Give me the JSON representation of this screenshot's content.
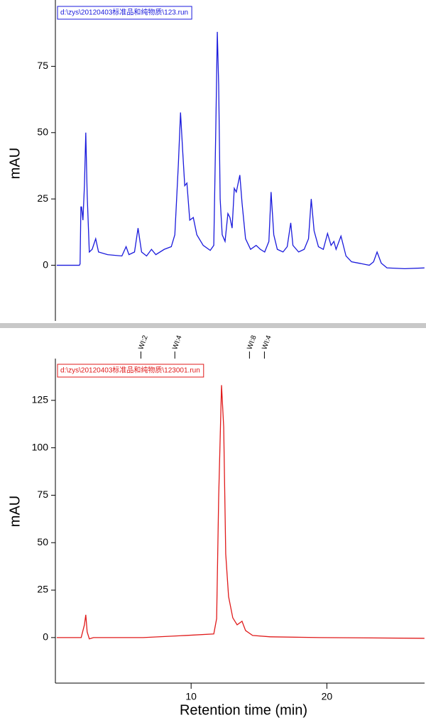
{
  "chart_data": [
    {
      "type": "line",
      "y_label": "mAU",
      "xlim": [
        0,
        27.2
      ],
      "ylim": [
        -21,
        100
      ],
      "yticks": [
        0,
        25,
        50,
        75
      ],
      "x": [
        0.1,
        0.21,
        1.77,
        1.82,
        1.88,
        1.93,
        2.03,
        2.14,
        2.24,
        2.34,
        2.5,
        2.71,
        2.97,
        3.18,
        3.85,
        4.9,
        5.21,
        5.42,
        5.83,
        6.09,
        6.35,
        6.72,
        7.08,
        7.4,
        8.02,
        8.54,
        8.8,
        9.06,
        9.22,
        9.38,
        9.53,
        9.69,
        9.9,
        10.16,
        10.42,
        10.89,
        11.41,
        11.67,
        11.82,
        11.93,
        12.03,
        12.14,
        12.29,
        12.5,
        12.71,
        12.86,
        13.02,
        13.18,
        13.33,
        13.59,
        13.75,
        14.01,
        14.38,
        14.79,
        15.1,
        15.42,
        15.73,
        15.89,
        16.09,
        16.35,
        16.77,
        17.08,
        17.34,
        17.5,
        17.92,
        18.33,
        18.65,
        18.85,
        19.06,
        19.38,
        19.74,
        20.05,
        20.31,
        20.52,
        20.68,
        21.04,
        21.41,
        21.82,
        22.34,
        23.13,
        23.44,
        23.7,
        24.01,
        24.43,
        25.73,
        27.19
      ],
      "series": [
        {
          "name": "d:\\zys\\20120403标准品和纯物质\\123.run",
          "color": "#1a1adc",
          "values": [
            0,
            0,
            0,
            0.5,
            22,
            22,
            17,
            30,
            50,
            27,
            5,
            6,
            10,
            5,
            4,
            3.5,
            7,
            4,
            5,
            14,
            5,
            3.5,
            6,
            4,
            6,
            7,
            11.5,
            38,
            57.6,
            43,
            30,
            31,
            17,
            18,
            11.5,
            7.5,
            5.6,
            7.5,
            52,
            88,
            68,
            25,
            11.5,
            9,
            19.5,
            18,
            14,
            29,
            27.6,
            34,
            23.6,
            10,
            6,
            7.5,
            6,
            5,
            9,
            27.6,
            11.5,
            6,
            5,
            7,
            16,
            7.5,
            5,
            6,
            10,
            25,
            13,
            7,
            6,
            12,
            7.5,
            9,
            6,
            11,
            3.5,
            1.3,
            0.8,
            0,
            1.3,
            5,
            0.8,
            -1,
            -1.3,
            -1
          ]
        }
      ]
    },
    {
      "type": "line",
      "y_label": "mAU",
      "x_label": "Retention time (min)",
      "xlim": [
        0,
        27.2
      ],
      "xticks": [
        10,
        20
      ],
      "ylim": [
        -24,
        147
      ],
      "yticks": [
        0,
        25,
        50,
        75,
        100,
        125
      ],
      "annotations": [
        {
          "x": 6.3,
          "label": "WI:2"
        },
        {
          "x": 8.8,
          "label": "WI:4"
        },
        {
          "x": 14.3,
          "label": "WI:8"
        },
        {
          "x": 15.4,
          "label": "WI:4"
        }
      ],
      "x": [
        0.1,
        1.9,
        2.14,
        2.24,
        2.34,
        2.5,
        2.81,
        6.46,
        9.58,
        11.67,
        11.88,
        12.03,
        12.24,
        12.4,
        12.55,
        12.76,
        13.07,
        13.39,
        13.75,
        14.01,
        14.53,
        15.83,
        19.48,
        27.19
      ],
      "series": [
        {
          "name": "d:\\zys\\20120403标准品和纯物质\\123001.run",
          "color": "#e01a1a",
          "values": [
            0,
            0,
            6.7,
            12,
            3,
            -0.7,
            0,
            0,
            1.1,
            1.9,
            10,
            74,
            133,
            111,
            44,
            21.6,
            10.4,
            6.7,
            8.6,
            3.7,
            1.1,
            0.4,
            0,
            -0.4
          ]
        }
      ]
    }
  ]
}
